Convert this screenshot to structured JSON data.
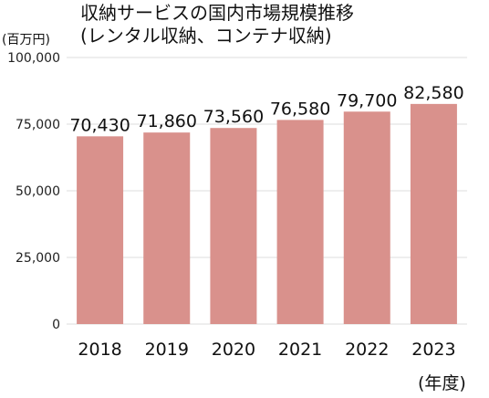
{
  "chart_data": {
    "type": "bar",
    "title_lines": [
      "収納サービスの国内市場規模推移",
      "(レンタル収納、コンテナ収納)"
    ],
    "y_unit": "(百万円)",
    "x_unit": "(年度)",
    "categories": [
      "2018",
      "2019",
      "2020",
      "2021",
      "2022",
      "2023"
    ],
    "values": [
      70430,
      71860,
      73560,
      76580,
      79700,
      82580
    ],
    "data_labels": [
      "70,430",
      "71,860",
      "73,560",
      "76,580",
      "79,700",
      "82,580"
    ],
    "ylim": [
      0,
      100000
    ],
    "yticks": [
      0,
      25000,
      50000,
      75000,
      100000
    ],
    "ytick_labels": [
      "0",
      "25,000",
      "50,000",
      "75,000",
      "100,000"
    ],
    "bar_color": "#d9918c",
    "grid": true
  }
}
